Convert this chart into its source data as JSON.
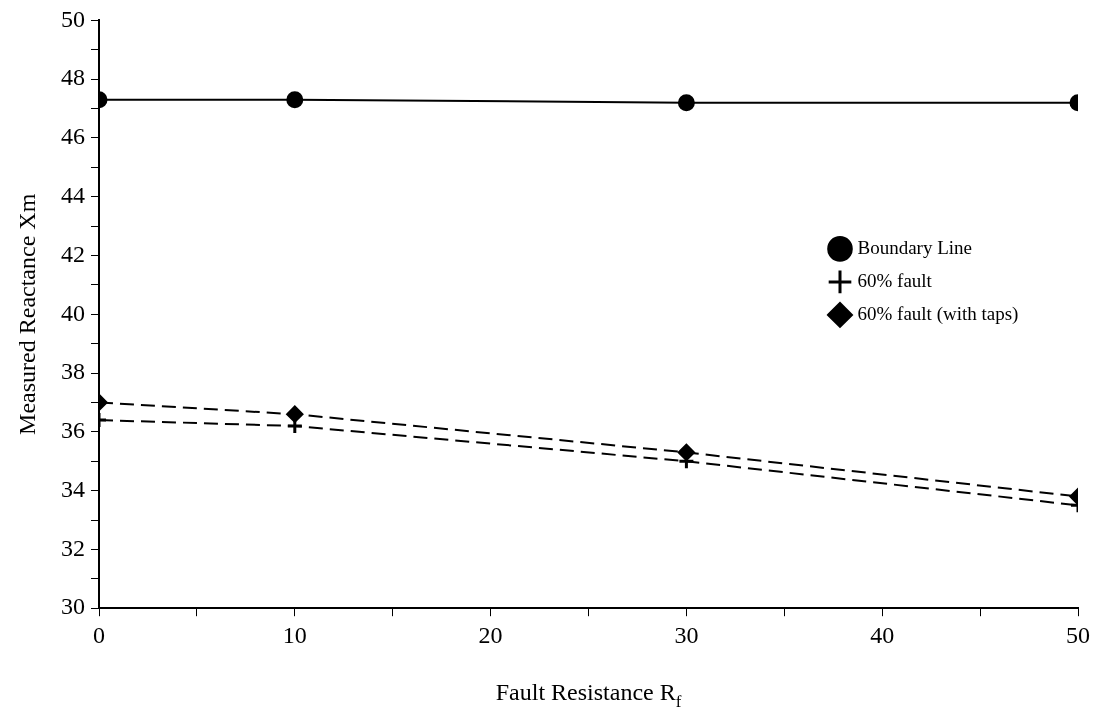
{
  "chart_data": {
    "type": "line",
    "xlabel": "Fault Resistance R$_{f}$",
    "ylabel": "Measured Reactance Xm",
    "x": [
      0,
      10,
      30,
      50
    ],
    "series": [
      {
        "name": "Boundary Line",
        "color": "#000000",
        "values": [
          47.3,
          47.3,
          47.2,
          47.2
        ],
        "marker": "circle",
        "line_style": "solid"
      },
      {
        "name": "60% fault",
        "color": "#000000",
        "values": [
          36.4,
          36.2,
          35.0,
          33.5
        ],
        "marker": "cross",
        "line_style": "dashed"
      },
      {
        "name": "60% fault (with taps)",
        "color": "#000000",
        "values": [
          37.0,
          36.6,
          35.3,
          33.8
        ],
        "marker": "diamond",
        "line_style": "dashed"
      }
    ],
    "xlim": [
      0,
      50
    ],
    "xticks": [
      0,
      {
        "value": 5,
        "label": null
      },
      10,
      {
        "value": 15,
        "label": null
      },
      20,
      {
        "value": 25,
        "label": null
      },
      30,
      {
        "value": 35,
        "label": null
      },
      40,
      {
        "value": 45,
        "label": null
      },
      50
    ],
    "ylim": [
      30,
      50
    ],
    "yticks": [
      30,
      {
        "value": 31,
        "label": null
      },
      32,
      {
        "value": 33,
        "label": null
      },
      34,
      {
        "value": 35,
        "label": null
      },
      36,
      {
        "value": 37,
        "label": null
      },
      38,
      {
        "value": 39,
        "label": null
      },
      40,
      {
        "value": 41,
        "label": null
      },
      42,
      {
        "value": 43,
        "label": null
      },
      44,
      {
        "value": 45,
        "label": null
      },
      46,
      {
        "value": 47,
        "label": null
      },
      48,
      {
        "value": 49,
        "label": null
      },
      50
    ],
    "grid": false,
    "legend": "right"
  }
}
